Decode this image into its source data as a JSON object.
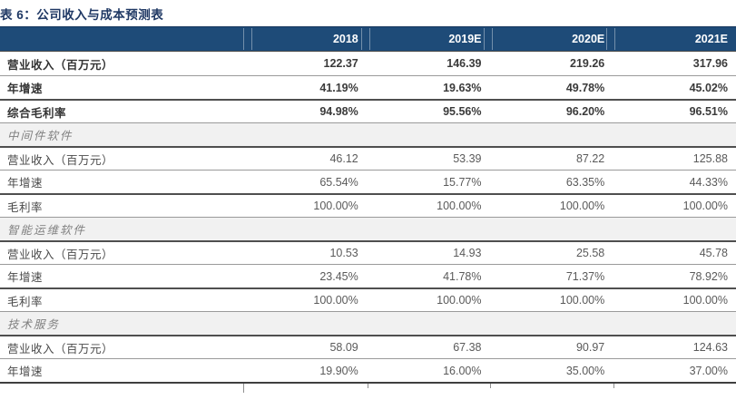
{
  "title": "表 6：公司收入与成本预测表",
  "colors": {
    "header_bg": "#1E4B78",
    "title_text": "#1F3864",
    "section_bg": "#F1F1F1",
    "heavy_rule": "#4F4F4F",
    "thin_rule": "#9A9A9A"
  },
  "table": {
    "columns": [
      "",
      "2018",
      "2019E",
      "2020E",
      "2021E"
    ],
    "rows": [
      {
        "type": "data-bold",
        "label": "营业收入（百万元）",
        "values": [
          "122.37",
          "146.39",
          "219.26",
          "317.96"
        ]
      },
      {
        "type": "data-bold",
        "label": "年增速",
        "values": [
          "41.19%",
          "19.63%",
          "49.78%",
          "45.02%"
        ]
      },
      {
        "type": "data-bold",
        "label": "综合毛利率",
        "values": [
          "94.98%",
          "95.56%",
          "96.20%",
          "96.51%"
        ]
      },
      {
        "type": "section",
        "label": "中间件软件"
      },
      {
        "type": "data",
        "label": "营业收入（百万元）",
        "values": [
          "46.12",
          "53.39",
          "87.22",
          "125.88"
        ]
      },
      {
        "type": "data",
        "label": "年增速",
        "values": [
          "65.54%",
          "15.77%",
          "63.35%",
          "44.33%"
        ]
      },
      {
        "type": "data",
        "label": "毛利率",
        "values": [
          "100.00%",
          "100.00%",
          "100.00%",
          "100.00%"
        ]
      },
      {
        "type": "section",
        "label": "智能运维软件"
      },
      {
        "type": "data",
        "label": "营业收入（百万元）",
        "values": [
          "10.53",
          "14.93",
          "25.58",
          "45.78"
        ]
      },
      {
        "type": "data",
        "label": "年增速",
        "values": [
          "23.45%",
          "41.78%",
          "71.37%",
          "78.92%"
        ]
      },
      {
        "type": "data",
        "label": "毛利率",
        "values": [
          "100.00%",
          "100.00%",
          "100.00%",
          "100.00%"
        ]
      },
      {
        "type": "section",
        "label": "技术服务"
      },
      {
        "type": "data",
        "label": "营业收入（百万元）",
        "values": [
          "58.09",
          "67.38",
          "90.97",
          "124.63"
        ]
      },
      {
        "type": "data",
        "label": "年增速",
        "values": [
          "19.90%",
          "16.00%",
          "35.00%",
          "37.00%"
        ]
      }
    ]
  }
}
